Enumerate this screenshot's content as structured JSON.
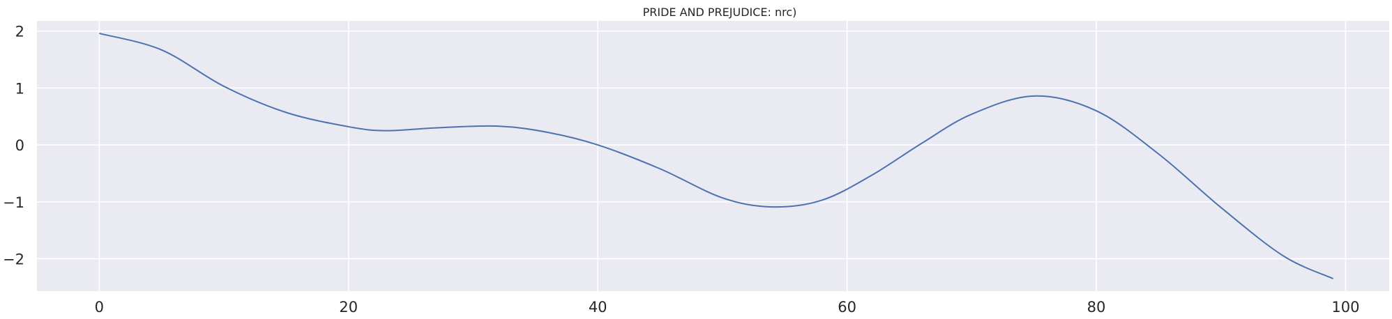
{
  "chart_data": {
    "type": "line",
    "title": "PRIDE AND PREJUDICE: nrc)",
    "xlabel": "",
    "ylabel": "",
    "xlim": [
      -5,
      103.5
    ],
    "ylim": [
      -2.57,
      2.18
    ],
    "xticks": [
      0,
      20,
      40,
      60,
      80,
      100
    ],
    "yticks": [
      2,
      1,
      0,
      -1,
      -2
    ],
    "xtick_labels": [
      "0",
      "20",
      "40",
      "60",
      "80",
      "100"
    ],
    "ytick_labels": [
      "2",
      "1",
      "0",
      "−1",
      "−2"
    ],
    "grid": true,
    "colors": {
      "background": "#EAEAF2",
      "grid": "#FFFFFF",
      "line": "#4C72B0"
    },
    "series": [
      {
        "x": [
          0,
          5,
          10,
          15,
          20,
          23,
          27,
          32,
          36,
          40,
          45,
          50,
          54,
          58,
          62,
          66,
          70,
          75,
          80,
          85,
          90,
          95,
          99
        ],
        "values": [
          1.96,
          1.67,
          1.03,
          0.57,
          0.32,
          0.25,
          0.3,
          0.33,
          0.22,
          0.0,
          -0.42,
          -0.93,
          -1.09,
          -0.97,
          -0.53,
          0.03,
          0.54,
          0.86,
          0.6,
          -0.16,
          -1.1,
          -1.95,
          -2.35
        ]
      }
    ]
  }
}
